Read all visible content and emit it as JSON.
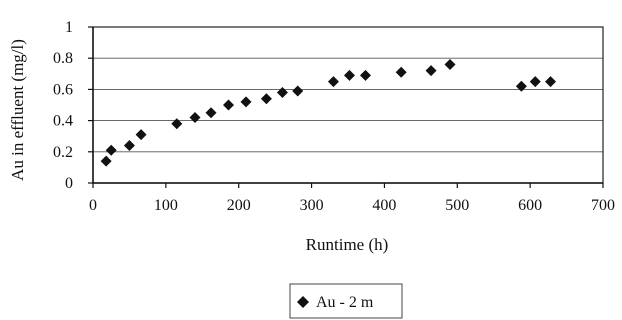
{
  "chart_data": {
    "type": "scatter",
    "xlabel": "Runtime (h)",
    "ylabel": "Au in effluent (mg/l)",
    "xlim": [
      0,
      700
    ],
    "ylim": [
      0,
      1
    ],
    "xticks": [
      "0",
      "100",
      "200",
      "300",
      "400",
      "500",
      "600",
      "700"
    ],
    "yticks": [
      "0",
      "0.2",
      "0.4",
      "0.6",
      "0.8",
      "1"
    ],
    "grid": "horizontal",
    "legend_position": "bottom",
    "series": [
      {
        "name": "Au - 2 m",
        "color": "#111111",
        "marker": "diamond",
        "points": [
          {
            "x": 18,
            "y": 0.14
          },
          {
            "x": 25,
            "y": 0.21
          },
          {
            "x": 50,
            "y": 0.24
          },
          {
            "x": 66,
            "y": 0.31
          },
          {
            "x": 115,
            "y": 0.38
          },
          {
            "x": 140,
            "y": 0.42
          },
          {
            "x": 162,
            "y": 0.45
          },
          {
            "x": 186,
            "y": 0.5
          },
          {
            "x": 210,
            "y": 0.52
          },
          {
            "x": 238,
            "y": 0.54
          },
          {
            "x": 260,
            "y": 0.58
          },
          {
            "x": 281,
            "y": 0.59
          },
          {
            "x": 330,
            "y": 0.65
          },
          {
            "x": 352,
            "y": 0.69
          },
          {
            "x": 374,
            "y": 0.69
          },
          {
            "x": 423,
            "y": 0.71
          },
          {
            "x": 464,
            "y": 0.72
          },
          {
            "x": 490,
            "y": 0.76
          },
          {
            "x": 588,
            "y": 0.62
          },
          {
            "x": 607,
            "y": 0.65
          },
          {
            "x": 628,
            "y": 0.65
          }
        ]
      }
    ]
  }
}
